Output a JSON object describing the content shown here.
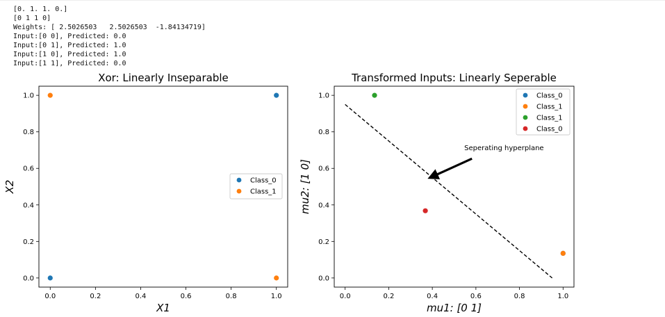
{
  "console_output": [
    "[0. 1. 1. 0.]",
    "[0 1 1 0]",
    "Weights: [ 2.5026503   2.5026503  -1.84134719]",
    "Input:[0 0], Predicted: 0.0",
    "Input:[0 1], Predicted: 1.0",
    "Input:[1 0], Predicted: 1.0",
    "Input:[1 1], Predicted: 0.0"
  ],
  "colors": {
    "blue": "#1f77b4",
    "orange": "#ff7f0e",
    "green": "#2ca02c",
    "red": "#d62728"
  },
  "chart_data": [
    {
      "type": "scatter",
      "title": "Xor: Linearly Inseparable",
      "xlabel": "X1",
      "ylabel": "X2",
      "xlim": [
        -0.05,
        1.05
      ],
      "ylim": [
        -0.05,
        1.05
      ],
      "xticks": [
        "0.0",
        "0.2",
        "0.4",
        "0.6",
        "0.8",
        "1.0"
      ],
      "yticks": [
        "0.0",
        "0.2",
        "0.4",
        "0.6",
        "0.8",
        "1.0"
      ],
      "legend_position": "center right",
      "series": [
        {
          "name": "Class_0",
          "color": "#1f77b4",
          "points": [
            [
              0,
              0
            ],
            [
              1,
              1
            ]
          ]
        },
        {
          "name": "Class_1",
          "color": "#ff7f0e",
          "points": [
            [
              0,
              1
            ],
            [
              1,
              0
            ]
          ]
        }
      ]
    },
    {
      "type": "scatter",
      "title": "Transformed Inputs: Linearly Seperable",
      "xlabel": "mu1: [0 1]",
      "ylabel": "mu2: [1 0]",
      "xlim": [
        -0.05,
        1.05
      ],
      "ylim": [
        -0.05,
        1.05
      ],
      "xticks": [
        "0.0",
        "0.2",
        "0.4",
        "0.6",
        "0.8",
        "1.0"
      ],
      "yticks": [
        "0.0",
        "0.2",
        "0.4",
        "0.6",
        "0.8",
        "1.0"
      ],
      "legend_position": "upper right",
      "series": [
        {
          "name": "Class_0",
          "color": "#1f77b4",
          "points": [
            [
              1,
              0.135
            ]
          ]
        },
        {
          "name": "Class_1",
          "color": "#ff7f0e",
          "points": [
            [
              1,
              0.135
            ]
          ]
        },
        {
          "name": "Class_1",
          "color": "#2ca02c",
          "points": [
            [
              0.135,
              1
            ]
          ]
        },
        {
          "name": "Class_0",
          "color": "#d62728",
          "points": [
            [
              0.368,
              0.368
            ]
          ]
        }
      ],
      "line": {
        "style": "dashed",
        "color": "#000000",
        "points": [
          [
            0,
            0.95
          ],
          [
            0.95,
            0
          ]
        ]
      },
      "annotation": {
        "text": "Seperating hyperplane",
        "xy": [
          0.4,
          0.55
        ],
        "xytext": [
          0.55,
          0.68
        ]
      }
    }
  ]
}
